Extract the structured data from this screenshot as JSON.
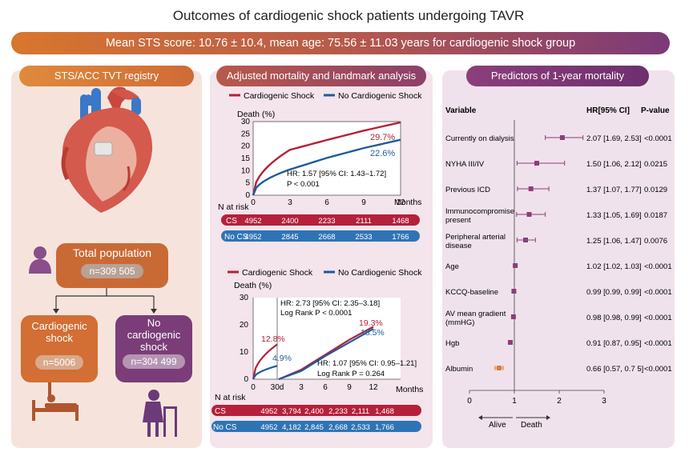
{
  "title": "Outcomes of cardiogenic shock patients undergoing TAVR",
  "banner": "Mean STS score: 10.76 ± 10.4, mean age: 75.56 ± 11.03 years for cardiogenic shock group",
  "left": {
    "title": "STS/ACC TVT registry",
    "total_label": "Total population",
    "total_n": "n=309 505",
    "cs_label_1": "Cardiogenic",
    "cs_label_2": "shock",
    "cs_n": "n=5006",
    "nocs_label_1": "No",
    "nocs_label_2": "cardiogenic",
    "nocs_label_3": "shock",
    "nocs_n": "n=304 499"
  },
  "middle": {
    "title": "Adjusted mortality and landmark analysis",
    "legend_cs": "Cardiogenic Shock",
    "legend_nocs": "No Cardiogenic Shock",
    "death_label": "Death (%)",
    "months_label": "Months",
    "risk_label": "N at risk",
    "cs_row_label": "CS",
    "nocs_row_label": "No CS",
    "c1_end_cs": "29.7%",
    "c1_end_nocs": "22.6%",
    "c1_hr": "HR: 1.57 [95% CI: 1.43–1.72]",
    "c1_p": "P < 0.001",
    "c1_risk_cs": [
      "4952",
      "2400",
      "2233",
      "2111",
      "1468"
    ],
    "c1_risk_nocs": [
      "4952",
      "2845",
      "2668",
      "2533",
      "1766"
    ],
    "c2_hr1": "HR: 2.73 [95% CI: 2.35–3.18]",
    "c2_p1": "Log Rank P < 0.0001",
    "c2_hr2": "HR: 1.07 [95% CI: 0.95–1.21]",
    "c2_p2": "Log Rank P = 0.264",
    "c2_30d_cs": "12.8%",
    "c2_30d_nocs": "4.9%",
    "c2_end_cs": "19.3%",
    "c2_end_nocs": "18.5%",
    "c2_risk_cs": [
      "4952",
      "3,794",
      "2,400",
      "2,233",
      "2,111",
      "1,468"
    ],
    "c2_risk_nocs": [
      "4952",
      "4,182",
      "2,845",
      "2,668",
      "2,533",
      "1,766"
    ]
  },
  "right": {
    "title": "Predictors of 1-year mortality",
    "col_variable": "Variable",
    "col_hr": "HR[95% CI]",
    "col_p": "P-value",
    "alive": "Alive",
    "death": "Death"
  },
  "colors": {
    "cs": "#b5203a",
    "nocs": "#1f5c99",
    "marker": "#8a3f78"
  },
  "chart_data": [
    {
      "type": "line",
      "x": [
        0,
        3,
        6,
        9,
        12
      ],
      "xlabel": "Months",
      "ylabel": "Death (%)",
      "xlim": [
        0,
        12
      ],
      "ylim": [
        0,
        30
      ],
      "series": [
        {
          "name": "Cardiogenic Shock",
          "values": [
            0,
            18.5,
            22.5,
            26.3,
            29.7
          ]
        },
        {
          "name": "No Cardiogenic Shock",
          "values": [
            0,
            10.5,
            15.2,
            19.2,
            22.6
          ]
        }
      ]
    },
    {
      "type": "line",
      "x": [
        0,
        1,
        3,
        6,
        9,
        12
      ],
      "xlabel": "Months",
      "ylabel": "Death (%)",
      "ylim": [
        0,
        30
      ],
      "series": [
        {
          "name": "Cardiogenic Shock",
          "values": [
            0,
            12.8,
            3.5,
            9,
            14.5,
            19.3
          ]
        },
        {
          "name": "No Cardiogenic Shock",
          "values": [
            0,
            4.9,
            3,
            8.5,
            13.5,
            18.5
          ]
        }
      ]
    },
    {
      "type": "scatter",
      "xlim": [
        0,
        3
      ],
      "xticks": [
        0,
        1,
        2,
        3
      ],
      "rows": [
        {
          "variable": [
            "Currently on dialysis"
          ],
          "hr": 2.07,
          "lo": 1.69,
          "hi": 2.53,
          "hr_text": "2.07 [1.69, 2.53]",
          "p": "<0.0001"
        },
        {
          "variable": [
            "NYHA III/IV"
          ],
          "hr": 1.5,
          "lo": 1.06,
          "hi": 2.12,
          "hr_text": "1.50 [1.06, 2.12]",
          "p": "0.0215"
        },
        {
          "variable": [
            "Previous ICD"
          ],
          "hr": 1.37,
          "lo": 1.07,
          "hi": 1.77,
          "hr_text": "1.37 [1.07, 1.77]",
          "p": "0.0129"
        },
        {
          "variable": [
            "Immunocompromise",
            "present"
          ],
          "hr": 1.33,
          "lo": 1.05,
          "hi": 1.69,
          "hr_text": "1.33 [1.05, 1.69]",
          "p": "0.0187"
        },
        {
          "variable": [
            "Peripheral arterial",
            "disease"
          ],
          "hr": 1.25,
          "lo": 1.06,
          "hi": 1.47,
          "hr_text": "1.25 [1.06, 1.47]",
          "p": "0.0076"
        },
        {
          "variable": [
            "Age"
          ],
          "hr": 1.02,
          "lo": 1.02,
          "hi": 1.03,
          "hr_text": "1.02 [1.02, 1.03]",
          "p": "<0.0001"
        },
        {
          "variable": [
            "KCCQ-baseline"
          ],
          "hr": 0.99,
          "lo": 0.99,
          "hi": 0.99,
          "hr_text": "0.99 [0.99, 0.99]",
          "p": "<0.0001"
        },
        {
          "variable": [
            "AV mean gradient",
            "(mmHG)"
          ],
          "hr": 0.98,
          "lo": 0.98,
          "hi": 0.99,
          "hr_text": "0.98 [0.98, 0.99]",
          "p": "<0.0001"
        },
        {
          "variable": [
            "Hgb"
          ],
          "hr": 0.91,
          "lo": 0.87,
          "hi": 0.95,
          "hr_text": "0.91 [0.87, 0.95]",
          "p": "<0.0001"
        },
        {
          "variable": [
            "Albumin"
          ],
          "hr": 0.66,
          "lo": 0.57,
          "hi": 0.75,
          "hr_text": "0.66 [0.57, 0.7 5]",
          "p": "<0.0001",
          "color": "#e07b3a"
        }
      ]
    }
  ]
}
